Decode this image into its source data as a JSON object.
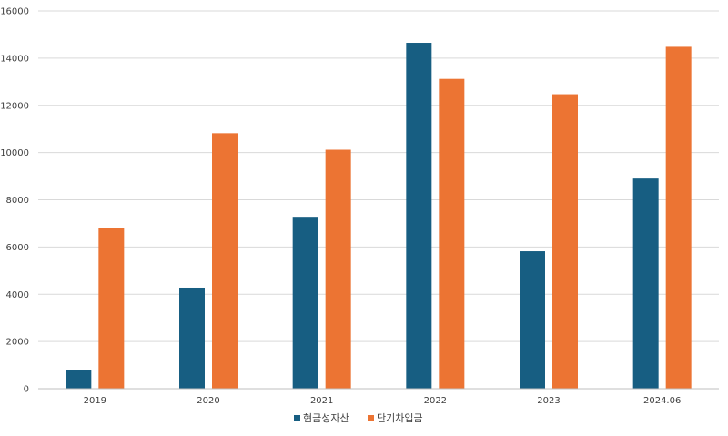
{
  "chart_data": {
    "type": "bar",
    "title": "",
    "xlabel": "",
    "ylabel": "",
    "categories": [
      "2019",
      "2020",
      "2021",
      "2022",
      "2023",
      "2024.06"
    ],
    "series": [
      {
        "name": "현금성자산",
        "color": "#175E82",
        "values": [
          800,
          4280,
          7280,
          14650,
          5820,
          8900
        ]
      },
      {
        "name": "단기차입금",
        "color": "#EC7433",
        "values": [
          6800,
          10820,
          10120,
          13120,
          12470,
          14480
        ]
      }
    ],
    "ylim": [
      0,
      16000
    ],
    "yticks": [
      "0",
      "2000",
      "4000",
      "6000",
      "8000",
      "10000",
      "12000",
      "14000",
      "16000"
    ],
    "grid": true,
    "legend_position": "bottom"
  }
}
